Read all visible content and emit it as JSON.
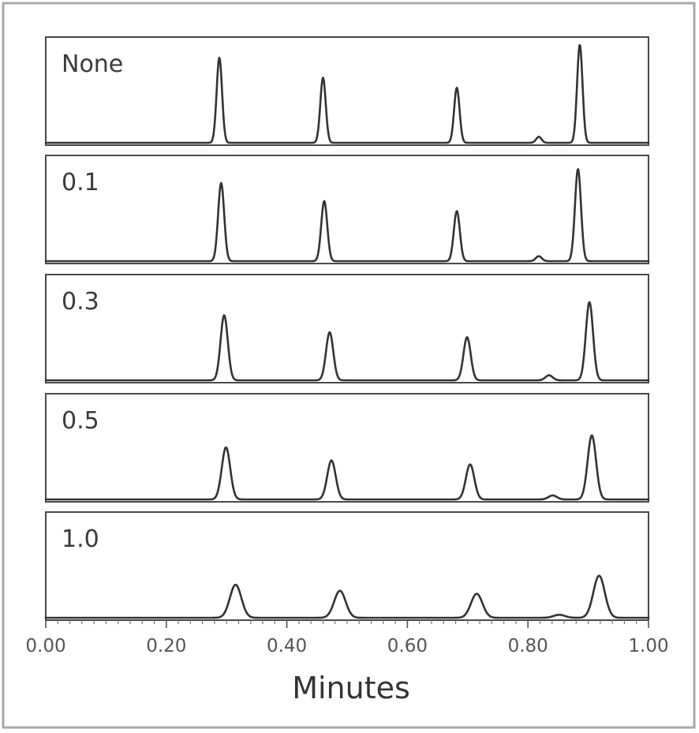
{
  "chart_data": {
    "type": "line",
    "title": "",
    "xlabel": "Minutes",
    "ylabel": "",
    "xlim": [
      0,
      1.0
    ],
    "x_ticks": [
      "0.00",
      "0.20",
      "0.40",
      "0.60",
      "0.80",
      "1.00"
    ],
    "x_tick_values": [
      0.0,
      0.2,
      0.4,
      0.6,
      0.8,
      1.0
    ],
    "grid": false,
    "line_color": "#333333",
    "frame_color": "#4a4a4a",
    "series": [
      {
        "name": "None",
        "peaks": [
          {
            "time": 0.288,
            "height": 0.85,
            "width": 0.0045
          },
          {
            "time": 0.46,
            "height": 0.65,
            "width": 0.0045
          },
          {
            "time": 0.682,
            "height": 0.55,
            "width": 0.0045
          },
          {
            "time": 0.818,
            "height": 0.06,
            "width": 0.0045
          },
          {
            "time": 0.886,
            "height": 0.98,
            "width": 0.0045
          }
        ]
      },
      {
        "name": "0.1",
        "peaks": [
          {
            "time": 0.291,
            "height": 0.78,
            "width": 0.005
          },
          {
            "time": 0.462,
            "height": 0.6,
            "width": 0.005
          },
          {
            "time": 0.682,
            "height": 0.5,
            "width": 0.005
          },
          {
            "time": 0.818,
            "height": 0.05,
            "width": 0.005
          },
          {
            "time": 0.883,
            "height": 0.92,
            "width": 0.005
          }
        ]
      },
      {
        "name": "0.3",
        "peaks": [
          {
            "time": 0.296,
            "height": 0.65,
            "width": 0.006
          },
          {
            "time": 0.471,
            "height": 0.48,
            "width": 0.006
          },
          {
            "time": 0.699,
            "height": 0.43,
            "width": 0.006
          },
          {
            "time": 0.835,
            "height": 0.05,
            "width": 0.006
          },
          {
            "time": 0.902,
            "height": 0.78,
            "width": 0.006
          }
        ]
      },
      {
        "name": "0.5",
        "peaks": [
          {
            "time": 0.299,
            "height": 0.52,
            "width": 0.007
          },
          {
            "time": 0.474,
            "height": 0.39,
            "width": 0.007
          },
          {
            "time": 0.704,
            "height": 0.35,
            "width": 0.007
          },
          {
            "time": 0.841,
            "height": 0.04,
            "width": 0.007
          },
          {
            "time": 0.906,
            "height": 0.64,
            "width": 0.007
          }
        ]
      },
      {
        "name": "1.0",
        "peaks": [
          {
            "time": 0.315,
            "height": 0.33,
            "width": 0.0095
          },
          {
            "time": 0.488,
            "height": 0.27,
            "width": 0.0095
          },
          {
            "time": 0.715,
            "height": 0.24,
            "width": 0.0095
          },
          {
            "time": 0.852,
            "height": 0.03,
            "width": 0.0095
          },
          {
            "time": 0.918,
            "height": 0.42,
            "width": 0.0095
          }
        ]
      }
    ]
  }
}
